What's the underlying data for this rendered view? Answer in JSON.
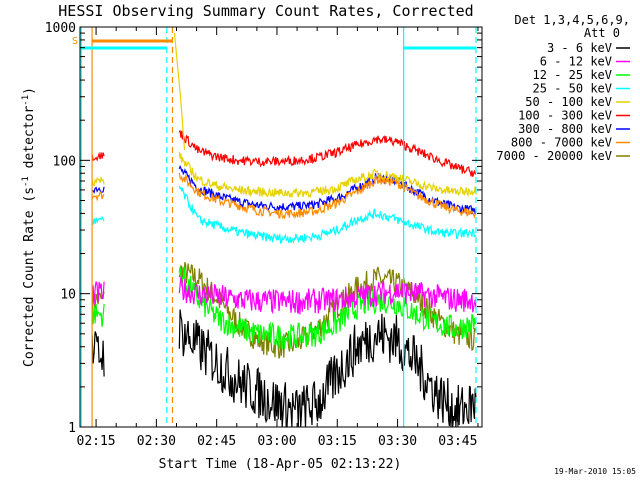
{
  "chart_data": {
    "type": "line",
    "title": "HESSI Observing Summary Count Rates, Corrected",
    "xlabel": "Start Time (18-Apr-05 02:13:22)",
    "ylabel_main": "Corrected Count Rate (s",
    "ylabel_sup1": "-1",
    "ylabel_mid": " detector",
    "ylabel_sup2": "-1",
    "ylabel_end": ")",
    "yscale": "log",
    "xlim": [
      "02:11",
      "03:51"
    ],
    "ylim": [
      1,
      1000
    ],
    "x_ticks": [
      "02:15",
      "02:30",
      "02:45",
      "03:00",
      "03:15",
      "03:30",
      "03:45"
    ],
    "y_ticks": [
      "1",
      "10",
      "100",
      "1000"
    ],
    "legend_header": [
      "Det 1,3,4,5,6,9,",
      "Att 0"
    ],
    "legend_position": "right",
    "s_marker": "S",
    "footer_date": "19-Mar-2010 15:05",
    "series": [
      {
        "name": "3 - 6 keV",
        "color": "#000000",
        "early": 3.5,
        "values": [
          5.5,
          4,
          3,
          2.2,
          1.8,
          1.5,
          1.3,
          1.5,
          2.5,
          4,
          5,
          4.5,
          3,
          1.8,
          1.3,
          1.5
        ]
      },
      {
        "name": "6 - 12 keV",
        "color": "#ff00ff",
        "early": 10,
        "values": [
          11,
          10,
          9.5,
          9,
          8.8,
          8.7,
          8.7,
          8.8,
          9,
          9.5,
          10,
          10.5,
          10,
          9.5,
          9,
          9
        ]
      },
      {
        "name": "12 - 25 keV",
        "color": "#00ff00",
        "early": 7,
        "values": [
          15,
          9,
          6.5,
          5.5,
          5,
          4.8,
          4.8,
          5,
          6,
          8,
          9,
          8.5,
          7,
          6,
          5.5,
          6
        ]
      },
      {
        "name": "25 - 50 keV",
        "color": "#00ffff",
        "early": 35,
        "values": [
          65,
          36,
          32,
          29,
          27,
          26,
          26,
          27,
          30,
          36,
          40,
          36,
          32,
          29,
          28,
          29
        ]
      },
      {
        "name": "50 - 100 keV",
        "color": "#e6d200",
        "early": 70,
        "values": [
          110,
          72,
          64,
          60,
          58,
          57,
          57,
          58,
          62,
          72,
          80,
          75,
          67,
          61,
          58,
          60
        ]
      },
      {
        "name": "100 - 300 keV",
        "color": "#ff0000",
        "early": 108,
        "values": [
          165,
          118,
          106,
          100,
          98,
          98,
          100,
          105,
          115,
          130,
          145,
          138,
          118,
          102,
          88,
          80
        ]
      },
      {
        "name": "300 - 800 keV",
        "color": "#0000ff",
        "early": 62,
        "values": [
          88,
          62,
          54,
          49,
          46,
          45,
          45,
          47,
          52,
          62,
          75,
          70,
          58,
          49,
          44,
          42
        ]
      },
      {
        "name": "800 - 7000 keV",
        "color": "#ff8c00",
        "early": 55,
        "values": [
          80,
          58,
          50,
          46,
          42,
          40,
          40,
          42,
          48,
          58,
          72,
          68,
          55,
          47,
          42,
          40
        ]
      },
      {
        "name": "7000 - 20000 keV",
        "color": "#808000",
        "early": 9,
        "values": [
          15,
          13,
          9,
          6,
          4.5,
          4,
          4.2,
          5.5,
          8,
          11,
          13,
          12,
          9.5,
          6.5,
          5,
          4.5
        ]
      }
    ]
  }
}
